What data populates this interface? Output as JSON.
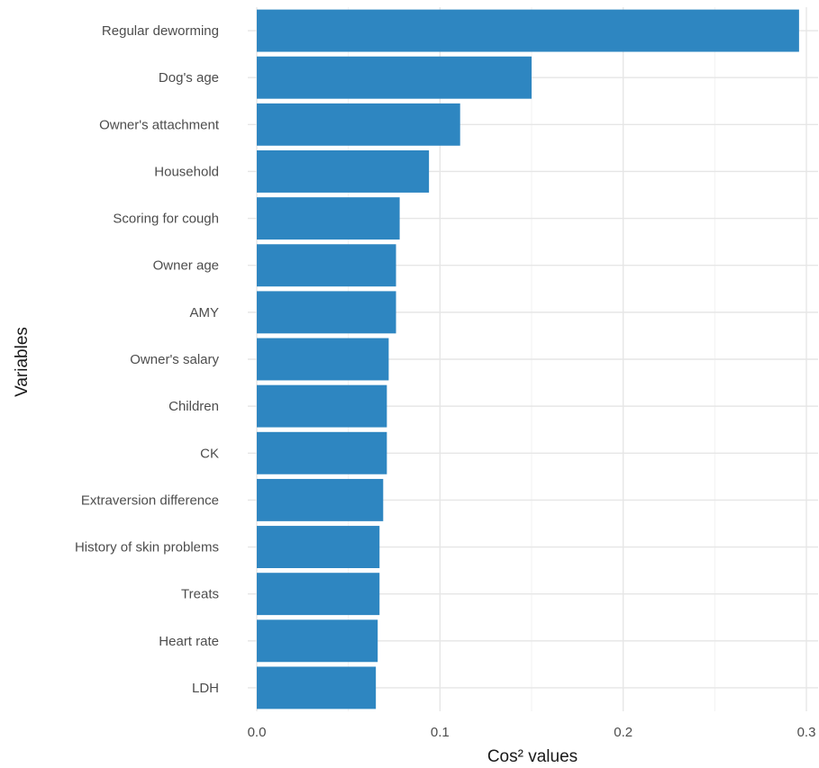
{
  "chart_data": {
    "type": "bar",
    "orientation": "horizontal",
    "xlabel": "Cos² values",
    "ylabel": "Variables",
    "xlim": [
      0,
      0.3
    ],
    "x_ticks": [
      0.0,
      0.1,
      0.2,
      0.3
    ],
    "x_tick_labels": [
      "0.0",
      "0.1",
      "0.2",
      "0.3"
    ],
    "grid": true,
    "bar_color": "#2e86c1",
    "categories": [
      "Regular deworming",
      "Dog's age",
      "Owner's attachment",
      "Household",
      "Scoring for cough",
      "Owner age",
      "AMY",
      "Owner's salary",
      "Children",
      "CK",
      "Extraversion difference",
      "History of skin problems",
      "Treats",
      "Heart rate",
      "LDH"
    ],
    "values": [
      0.296,
      0.15,
      0.111,
      0.094,
      0.078,
      0.076,
      0.076,
      0.072,
      0.071,
      0.071,
      0.069,
      0.067,
      0.067,
      0.066,
      0.065
    ]
  }
}
